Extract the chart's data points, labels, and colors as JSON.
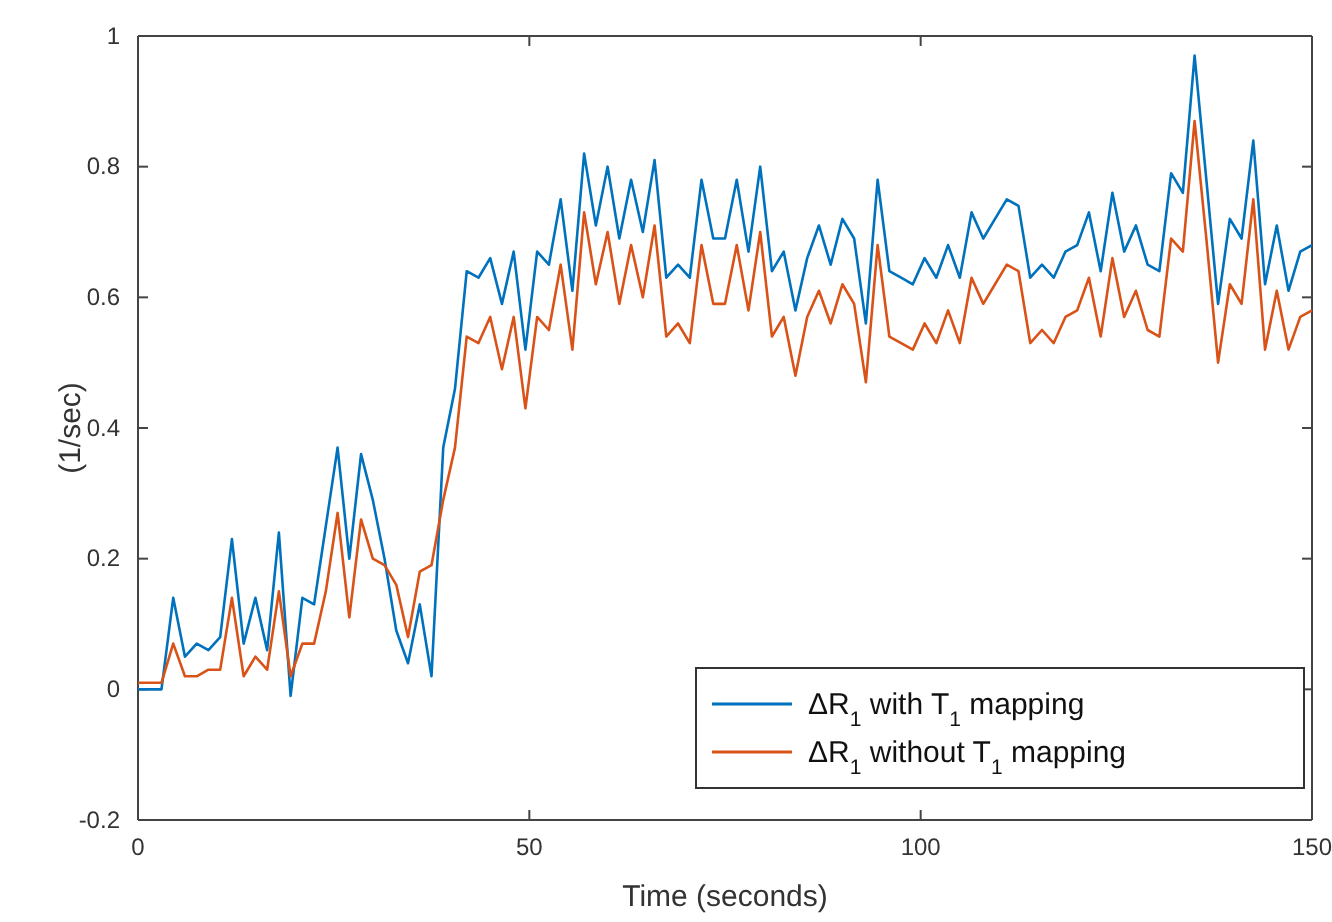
{
  "chart_data": {
    "type": "line",
    "xlabel": "Time (seconds)",
    "ylabel": "(1/sec)",
    "x": [
      0,
      1.5,
      3,
      4.5,
      6,
      7.5,
      9,
      10.5,
      12,
      13.5,
      15,
      16.5,
      18,
      19.5,
      21,
      22.5,
      24,
      25.5,
      27,
      28.5,
      30,
      31.5,
      33,
      34.5,
      36,
      37.5,
      39,
      40.5,
      42,
      43.5,
      45,
      46.5,
      48,
      49.5,
      51,
      52.5,
      54,
      55.5,
      57,
      58.5,
      60,
      61.5,
      63,
      64.5,
      66,
      67.5,
      69,
      70.5,
      72,
      73.5,
      75,
      76.5,
      78,
      79.5,
      81,
      82.5,
      84,
      85.5,
      87,
      88.5,
      90,
      91.5,
      93,
      94.5,
      96,
      97.5,
      99,
      100.5,
      102,
      103.5,
      105,
      106.5,
      108,
      109.5,
      111,
      112.5,
      114,
      115.5,
      117,
      118.5,
      120,
      121.5,
      123,
      124.5,
      126,
      127.5,
      129,
      130.5,
      132,
      133.5,
      135,
      136.5,
      138,
      139.5,
      141,
      142.5,
      144,
      145.5,
      147,
      148.5,
      150
    ],
    "series": [
      {
        "name": "ΔR$_{1}$ with T$_{1}$ mapping",
        "color": "#0072bd",
        "values": [
          0,
          0,
          0,
          0.14,
          0.05,
          0.07,
          0.06,
          0.08,
          0.23,
          0.07,
          0.14,
          0.06,
          0.24,
          -0.01,
          0.14,
          0.13,
          0.25,
          0.37,
          0.2,
          0.36,
          0.29,
          0.2,
          0.09,
          0.04,
          0.13,
          0.02,
          0.37,
          0.46,
          0.64,
          0.63,
          0.66,
          0.59,
          0.67,
          0.52,
          0.67,
          0.65,
          0.75,
          0.61,
          0.82,
          0.71,
          0.8,
          0.69,
          0.78,
          0.7,
          0.81,
          0.63,
          0.65,
          0.63,
          0.78,
          0.69,
          0.69,
          0.78,
          0.67,
          0.8,
          0.64,
          0.67,
          0.58,
          0.66,
          0.71,
          0.65,
          0.72,
          0.69,
          0.56,
          0.78,
          0.64,
          0.63,
          0.62,
          0.66,
          0.63,
          0.68,
          0.63,
          0.73,
          0.69,
          0.72,
          0.75,
          0.74,
          0.63,
          0.65,
          0.63,
          0.67,
          0.68,
          0.73,
          0.64,
          0.76,
          0.67,
          0.71,
          0.65,
          0.64,
          0.79,
          0.76,
          0.97,
          0.78,
          0.59,
          0.72,
          0.69,
          0.84,
          0.62,
          0.71,
          0.61,
          0.67,
          0.68
        ]
      },
      {
        "name": "ΔR$_{1}$ without T$_{1}$ mapping",
        "color": "#d95319",
        "values": [
          0.01,
          0.01,
          0.01,
          0.07,
          0.02,
          0.02,
          0.03,
          0.03,
          0.14,
          0.02,
          0.05,
          0.03,
          0.15,
          0.02,
          0.07,
          0.07,
          0.15,
          0.27,
          0.11,
          0.26,
          0.2,
          0.19,
          0.16,
          0.08,
          0.18,
          0.19,
          0.29,
          0.37,
          0.54,
          0.53,
          0.57,
          0.49,
          0.57,
          0.43,
          0.57,
          0.55,
          0.65,
          0.52,
          0.73,
          0.62,
          0.7,
          0.59,
          0.68,
          0.6,
          0.71,
          0.54,
          0.56,
          0.53,
          0.68,
          0.59,
          0.59,
          0.68,
          0.58,
          0.7,
          0.54,
          0.57,
          0.48,
          0.57,
          0.61,
          0.56,
          0.62,
          0.59,
          0.47,
          0.68,
          0.54,
          0.53,
          0.52,
          0.56,
          0.53,
          0.58,
          0.53,
          0.63,
          0.59,
          0.62,
          0.65,
          0.64,
          0.53,
          0.55,
          0.53,
          0.57,
          0.58,
          0.63,
          0.54,
          0.66,
          0.57,
          0.61,
          0.55,
          0.54,
          0.69,
          0.67,
          0.87,
          0.69,
          0.5,
          0.62,
          0.59,
          0.75,
          0.52,
          0.61,
          0.52,
          0.57,
          0.58
        ]
      }
    ],
    "xlim": [
      0,
      150
    ],
    "xticks": [
      0,
      50,
      100,
      150
    ],
    "ylim": [
      -0.2,
      1
    ],
    "yticks": [
      -0.2,
      0,
      0.2,
      0.4,
      0.6,
      0.8,
      1
    ],
    "legend": "bottom right",
    "grid": false
  }
}
